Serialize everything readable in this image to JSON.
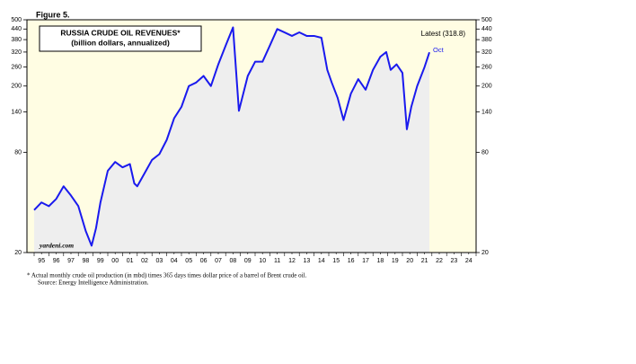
{
  "chart_data": {
    "type": "line",
    "figure_label": "Figure 5.",
    "title": "RUSSIA CRUDE OIL REVENUES*",
    "subtitle": "(billion dollars, annualized)",
    "annotation": "Latest (318.8)",
    "last_point_label": "Oct",
    "watermark": "yardeni.com",
    "footnote": "*   Actual monthly crude oil production (in mbd) times 365 days times dollar price of a barrel of Brent crude oil.",
    "source": "Source: Energy Intelligence Administration.",
    "log_scale": true,
    "xlim": [
      1995,
      2025
    ],
    "ylim": [
      20,
      500
    ],
    "yticks": [
      20,
      80,
      140,
      200,
      260,
      320,
      380,
      440,
      500
    ],
    "xticks": [
      {
        "value": 1995.5,
        "label": "95"
      },
      {
        "value": 1996.5,
        "label": "96"
      },
      {
        "value": 1997.5,
        "label": "97"
      },
      {
        "value": 1998.5,
        "label": "98"
      },
      {
        "value": 1999.5,
        "label": "99"
      },
      {
        "value": 2000.5,
        "label": "00"
      },
      {
        "value": 2001.5,
        "label": "01"
      },
      {
        "value": 2002.5,
        "label": "02"
      },
      {
        "value": 2003.5,
        "label": "03"
      },
      {
        "value": 2004.5,
        "label": "04"
      },
      {
        "value": 2005.5,
        "label": "05"
      },
      {
        "value": 2006.5,
        "label": "06"
      },
      {
        "value": 2007.5,
        "label": "07"
      },
      {
        "value": 2008.5,
        "label": "08"
      },
      {
        "value": 2009.5,
        "label": "09"
      },
      {
        "value": 2010.5,
        "label": "10"
      },
      {
        "value": 2011.5,
        "label": "11"
      },
      {
        "value": 2012.5,
        "label": "12"
      },
      {
        "value": 2013.5,
        "label": "13"
      },
      {
        "value": 2014.5,
        "label": "14"
      },
      {
        "value": 2015.5,
        "label": "15"
      },
      {
        "value": 2016.5,
        "label": "16"
      },
      {
        "value": 2017.5,
        "label": "17"
      },
      {
        "value": 2018.5,
        "label": "18"
      },
      {
        "value": 2019.5,
        "label": "19"
      },
      {
        "value": 2020.5,
        "label": "20"
      },
      {
        "value": 2021.5,
        "label": "21"
      },
      {
        "value": 2022.5,
        "label": "22"
      },
      {
        "value": 2023.5,
        "label": "23"
      },
      {
        "value": 2024.5,
        "label": "24"
      }
    ],
    "x": [
      1995.0,
      1995.5,
      1996.0,
      1996.5,
      1997.0,
      1997.5,
      1998.0,
      1998.5,
      1998.9,
      1999.2,
      1999.5,
      2000.0,
      2000.5,
      2001.0,
      2001.5,
      2001.8,
      2002.0,
      2002.5,
      2003.0,
      2003.5,
      2004.0,
      2004.5,
      2005.0,
      2005.5,
      2006.0,
      2006.5,
      2007.0,
      2007.5,
      2008.0,
      2008.5,
      2008.9,
      2009.5,
      2010.0,
      2010.5,
      2011.0,
      2011.5,
      2012.0,
      2012.5,
      2013.0,
      2013.5,
      2014.0,
      2014.5,
      2014.9,
      2015.2,
      2015.6,
      2016.0,
      2016.5,
      2017.0,
      2017.5,
      2018.0,
      2018.5,
      2018.9,
      2019.2,
      2019.6,
      2020.0,
      2020.3,
      2020.6,
      2021.0,
      2021.5,
      2021.83
    ],
    "series": [
      {
        "name": "Russia crude oil revenues",
        "color": "#1a1aee",
        "values": [
          36,
          40,
          38,
          42,
          50,
          44,
          38,
          27,
          22,
          28,
          40,
          62,
          70,
          65,
          68,
          52,
          50,
          60,
          72,
          78,
          95,
          128,
          150,
          200,
          210,
          230,
          200,
          270,
          350,
          450,
          142,
          230,
          280,
          280,
          350,
          440,
          420,
          400,
          420,
          400,
          400,
          390,
          250,
          210,
          170,
          125,
          180,
          220,
          190,
          250,
          300,
          320,
          250,
          270,
          240,
          110,
          150,
          200,
          260,
          318.8
        ]
      }
    ]
  }
}
